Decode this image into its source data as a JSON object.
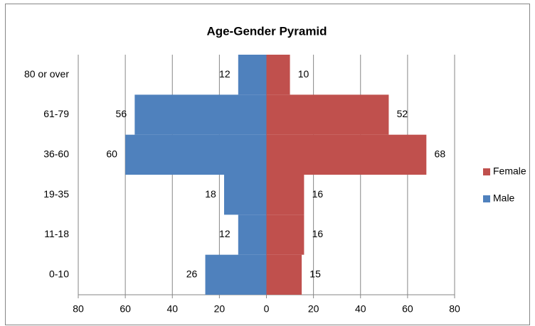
{
  "chart_data": {
    "type": "pyramid",
    "title": "Age-Gender Pyramid",
    "categories": [
      "0-10",
      "11-18",
      "19-35",
      "36-60",
      "61-79",
      "80 or over"
    ],
    "series": [
      {
        "name": "Female",
        "color": "#c0504d",
        "values": [
          15,
          16,
          16,
          68,
          52,
          10
        ]
      },
      {
        "name": "Male",
        "color": "#4f81bd",
        "values": [
          -26,
          -12,
          -18,
          -60,
          -56,
          -12
        ],
        "value_labels": [
          "26",
          "12",
          "18",
          "60",
          "56",
          "12"
        ]
      }
    ],
    "xlim": [
      -80,
      80
    ],
    "xticks": [
      {
        "value": -80,
        "label": "80"
      },
      {
        "value": -60,
        "label": "60"
      },
      {
        "value": -40,
        "label": "40"
      },
      {
        "value": -20,
        "label": "20"
      },
      0,
      20,
      40,
      60,
      80
    ],
    "grid": true,
    "legend": "right"
  }
}
